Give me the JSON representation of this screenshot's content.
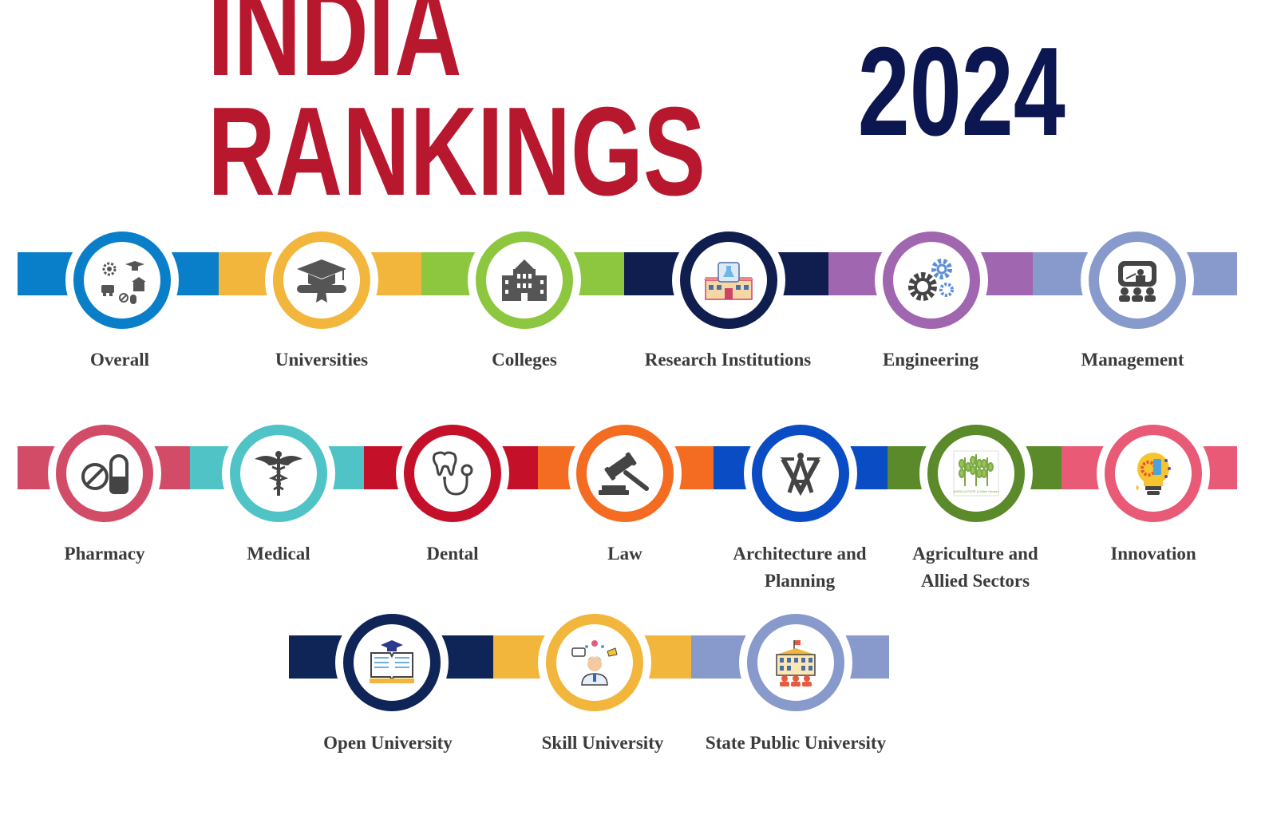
{
  "header": {
    "title_part1": "INDIA RANKINGS",
    "title_part2": "2024",
    "color_red": "#b8182e",
    "color_navy": "#0c1650"
  },
  "categories": [
    {
      "label": "Overall",
      "color": "#0a7fc9",
      "icon": "overall-icon"
    },
    {
      "label": "Universities",
      "color": "#f2b63c",
      "icon": "graduation-cap-icon"
    },
    {
      "label": "Colleges",
      "color": "#8dc63f",
      "icon": "college-building-icon"
    },
    {
      "label": "Research Institutions",
      "color": "#0f1e4f",
      "icon": "research-lab-icon"
    },
    {
      "label": "Engineering",
      "color": "#a066b0",
      "icon": "gears-icon"
    },
    {
      "label": "Management",
      "color": "#8899cc",
      "icon": "presentation-icon"
    },
    {
      "label": "Pharmacy",
      "color": "#d24c67",
      "icon": "pill-capsule-icon"
    },
    {
      "label": "Medical",
      "color": "#4fc3c6",
      "icon": "caduceus-icon"
    },
    {
      "label": "Dental",
      "color": "#c41129",
      "icon": "tooth-stethoscope-icon"
    },
    {
      "label": "Law",
      "color": "#f36c21",
      "icon": "gavel-icon"
    },
    {
      "label": "Architecture and Planning",
      "color": "#0a4cc4",
      "icon": "compass-square-icon"
    },
    {
      "label": "Agriculture and Allied Sectors",
      "color": "#5a8a2a",
      "icon": "wheat-icon"
    },
    {
      "label": "Innovation",
      "color": "#e85a75",
      "icon": "lightbulb-gear-icon"
    },
    {
      "label": "Open University",
      "color": "#0f2457",
      "icon": "open-book-icon"
    },
    {
      "label": "Skill University",
      "color": "#f2b63c",
      "icon": "skilled-person-icon"
    },
    {
      "label": "State Public University",
      "color": "#8899cc",
      "icon": "public-university-icon"
    }
  ],
  "agri_icon_text": "AGRICULTURE & Allied Sectors"
}
